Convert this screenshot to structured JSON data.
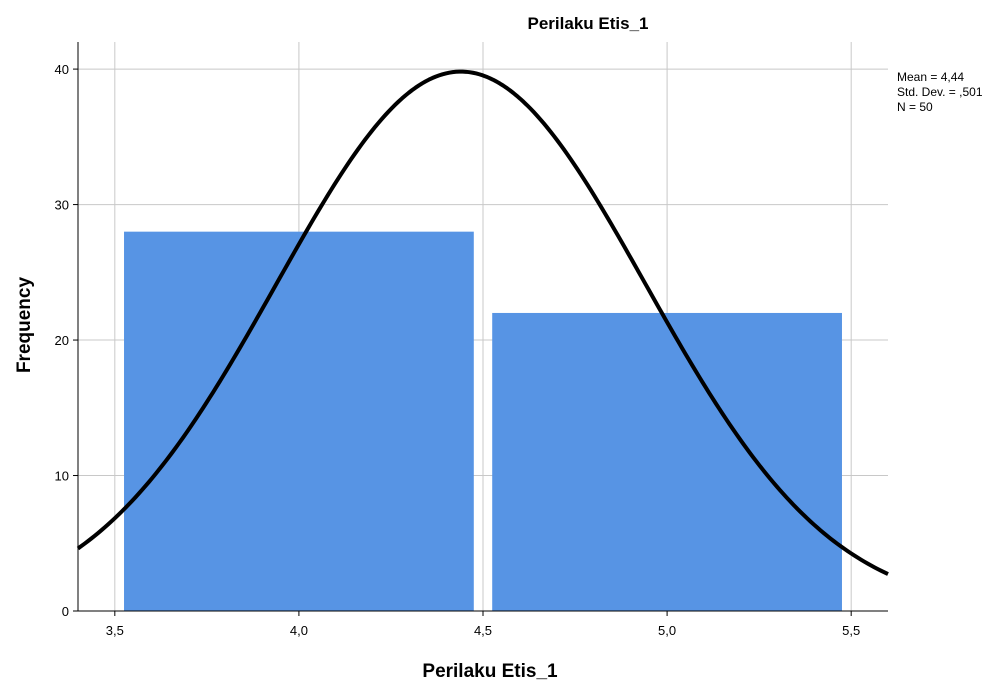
{
  "chart_data": {
    "type": "histogram",
    "title": "Perilaku Etis_1",
    "xlabel": "Perilaku Etis_1",
    "ylabel": "Frequency",
    "xlim": [
      3.4,
      5.6
    ],
    "ylim": [
      0,
      42
    ],
    "x_ticks": [
      3.5,
      4.0,
      4.5,
      5.0,
      5.5
    ],
    "x_tick_labels": [
      "3,5",
      "4,0",
      "4,5",
      "5,0",
      "5,5"
    ],
    "y_ticks": [
      0,
      10,
      20,
      30,
      40
    ],
    "y_tick_labels": [
      "0",
      "10",
      "20",
      "30",
      "40"
    ],
    "grid": true,
    "bars": [
      {
        "x_start": 3.525,
        "x_end": 4.475,
        "value": 28
      },
      {
        "x_start": 4.525,
        "x_end": 5.475,
        "value": 22
      }
    ],
    "normal_curve": {
      "mean": 4.44,
      "std_dev": 0.501,
      "n": 50,
      "bin_width": 1.0
    },
    "stats_text": [
      "Mean = 4,44",
      "Std. Dev. = ,501",
      "N = 50"
    ],
    "stats_placement": "top-right",
    "colors": {
      "bar": "#5794E4",
      "curve": "#000000",
      "grid": "#c8c8c8",
      "axis": "#000000"
    }
  }
}
